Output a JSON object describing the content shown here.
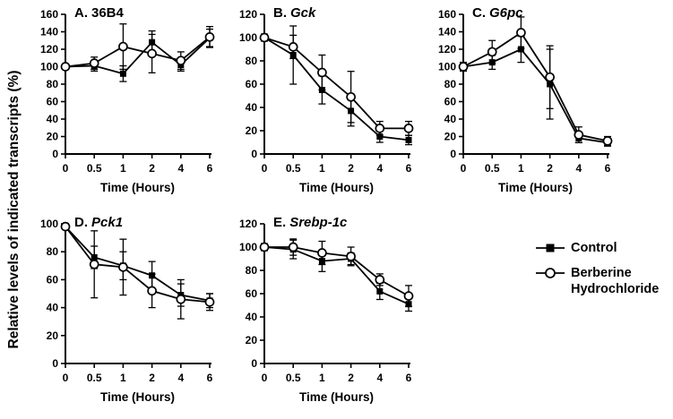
{
  "figure": {
    "ylabel": "Relative levels of indicated transcripts (%)"
  },
  "legend": {
    "items": [
      {
        "marker": "filled-square",
        "label": "Control"
      },
      {
        "marker": "open-circle",
        "label": "Berberine Hydrochloride"
      }
    ]
  },
  "chart_data": [
    {
      "id": "A",
      "type": "line",
      "title_prefix": "A.",
      "title_gene": "36B4",
      "gene_italic": false,
      "xlabel": "Time (Hours)",
      "categories": [
        "0",
        "0.5",
        "1",
        "2",
        "4",
        "6"
      ],
      "ylim": [
        0,
        160
      ],
      "ytick_step": 20,
      "series": [
        {
          "name": "Control",
          "marker": "filled-square",
          "values": [
            100,
            101,
            92,
            128,
            102,
            133
          ],
          "errors": [
            3,
            6,
            9,
            13,
            7,
            10
          ]
        },
        {
          "name": "Berberine Hydrochloride",
          "marker": "open-circle",
          "values": [
            100,
            104,
            123,
            115,
            107,
            134
          ],
          "errors": [
            3,
            7,
            26,
            22,
            10,
            12
          ]
        }
      ]
    },
    {
      "id": "B",
      "type": "line",
      "title_prefix": "B.",
      "title_gene": "Gck",
      "gene_italic": true,
      "xlabel": "Time (Hours)",
      "categories": [
        "0",
        "0.5",
        "1",
        "2",
        "4",
        "6"
      ],
      "ylim": [
        0,
        120
      ],
      "ytick_step": 20,
      "series": [
        {
          "name": "Control",
          "marker": "filled-square",
          "values": [
            100,
            85,
            55,
            37,
            15,
            12
          ],
          "errors": [
            3,
            25,
            12,
            13,
            5,
            4
          ]
        },
        {
          "name": "Berberine Hydrochloride",
          "marker": "open-circle",
          "values": [
            100,
            92,
            70,
            49,
            22,
            22
          ],
          "errors": [
            3,
            10,
            15,
            22,
            6,
            6
          ]
        }
      ]
    },
    {
      "id": "C",
      "type": "line",
      "title_prefix": "C.",
      "title_gene": "G6pc",
      "gene_italic": true,
      "xlabel": "Time (Hours)",
      "categories": [
        "0",
        "0.5",
        "1",
        "2",
        "4",
        "6"
      ],
      "ylim": [
        0,
        160
      ],
      "ytick_step": 20,
      "series": [
        {
          "name": "Control",
          "marker": "filled-square",
          "values": [
            100,
            105,
            120,
            80,
            18,
            13
          ],
          "errors": [
            5,
            8,
            15,
            40,
            5,
            4
          ]
        },
        {
          "name": "Berberine Hydrochloride",
          "marker": "open-circle",
          "values": [
            100,
            117,
            139,
            88,
            22,
            15
          ],
          "errors": [
            5,
            13,
            18,
            36,
            9,
            5
          ]
        }
      ]
    },
    {
      "id": "D",
      "type": "line",
      "title_prefix": "D.",
      "title_gene": "Pck1",
      "gene_italic": true,
      "xlabel": "Time (Hours)",
      "categories": [
        "0",
        "0.5",
        "1",
        "2",
        "4",
        "6"
      ],
      "ylim": [
        0,
        100
      ],
      "ytick_step": 20,
      "series": [
        {
          "name": "Control",
          "marker": "filled-square",
          "values": [
            98,
            76,
            70,
            63,
            49,
            45
          ],
          "errors": [
            2,
            8,
            10,
            10,
            8,
            5
          ]
        },
        {
          "name": "Berberine Hydrochloride",
          "marker": "open-circle",
          "values": [
            98,
            71,
            69,
            52,
            46,
            44
          ],
          "errors": [
            2,
            24,
            20,
            12,
            14,
            6
          ]
        }
      ]
    },
    {
      "id": "E",
      "type": "line",
      "title_prefix": "E.",
      "title_gene": "Srebp-1c",
      "gene_italic": true,
      "xlabel": "Time (Hours)",
      "categories": [
        "0",
        "0.5",
        "1",
        "2",
        "4",
        "6"
      ],
      "ylim": [
        0,
        120
      ],
      "ytick_step": 20,
      "series": [
        {
          "name": "Control",
          "marker": "filled-square",
          "values": [
            100,
            98,
            88,
            90,
            62,
            51
          ],
          "errors": [
            3,
            8,
            9,
            5,
            7,
            6
          ]
        },
        {
          "name": "Berberine Hydrochloride",
          "marker": "open-circle",
          "values": [
            100,
            100,
            95,
            92,
            72,
            58
          ],
          "errors": [
            3,
            7,
            10,
            8,
            5,
            9
          ]
        }
      ]
    }
  ]
}
